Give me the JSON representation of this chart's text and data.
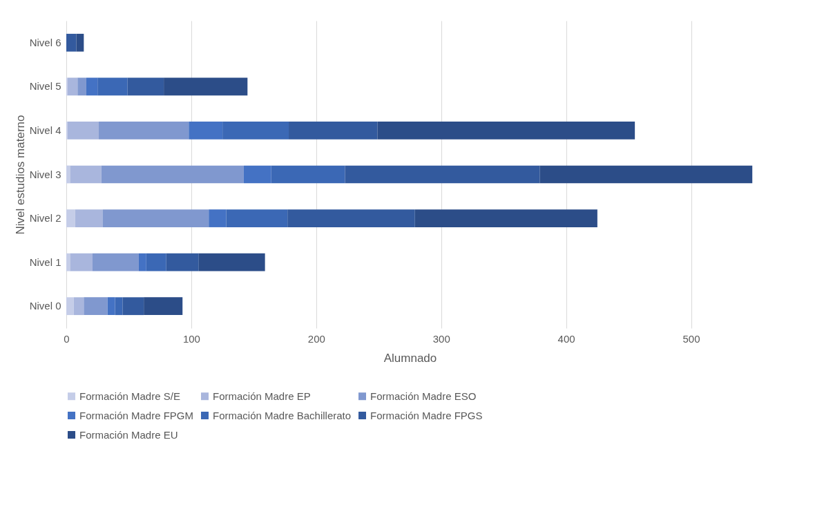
{
  "chart_data": {
    "type": "bar",
    "orientation": "horizontal",
    "stacked": true,
    "xlabel": "Alumnado",
    "ylabel": "Nivel estudios materno",
    "categories": [
      "Nivel 6",
      "Nivel 5",
      "Nivel 4",
      "Nivel 3",
      "Nivel 2",
      "Nivel 1",
      "Nivel 0"
    ],
    "series": [
      {
        "name": "Formación Madre S/E",
        "color": "#c5cde8",
        "values": [
          0,
          1,
          1,
          3,
          7,
          3,
          6
        ]
      },
      {
        "name": "Formación Madre EP",
        "color": "#a9b6dd",
        "values": [
          0,
          8,
          25,
          25,
          22,
          18,
          8
        ]
      },
      {
        "name": "Formación Madre ESO",
        "color": "#8098cf",
        "values": [
          0,
          7,
          72,
          114,
          85,
          37,
          19
        ]
      },
      {
        "name": "Formación Madre FPGM",
        "color": "#4472c4",
        "values": [
          0,
          9,
          27,
          22,
          14,
          6,
          6
        ]
      },
      {
        "name": "Formación Madre Bachillerato",
        "color": "#3b68b5",
        "values": [
          0,
          24,
          53,
          59,
          49,
          16,
          6
        ]
      },
      {
        "name": "Formación Madre FPGS",
        "color": "#335a9e",
        "values": [
          8,
          29,
          71,
          156,
          102,
          26,
          17
        ]
      },
      {
        "name": "Formación Madre EU",
        "color": "#2c4d88",
        "values": [
          6,
          67,
          206,
          170,
          146,
          53,
          31
        ]
      }
    ],
    "xlim": [
      0,
      550
    ],
    "xticks": [
      0,
      100,
      200,
      300,
      400,
      500
    ],
    "grid": "x",
    "legend": "bottom"
  }
}
